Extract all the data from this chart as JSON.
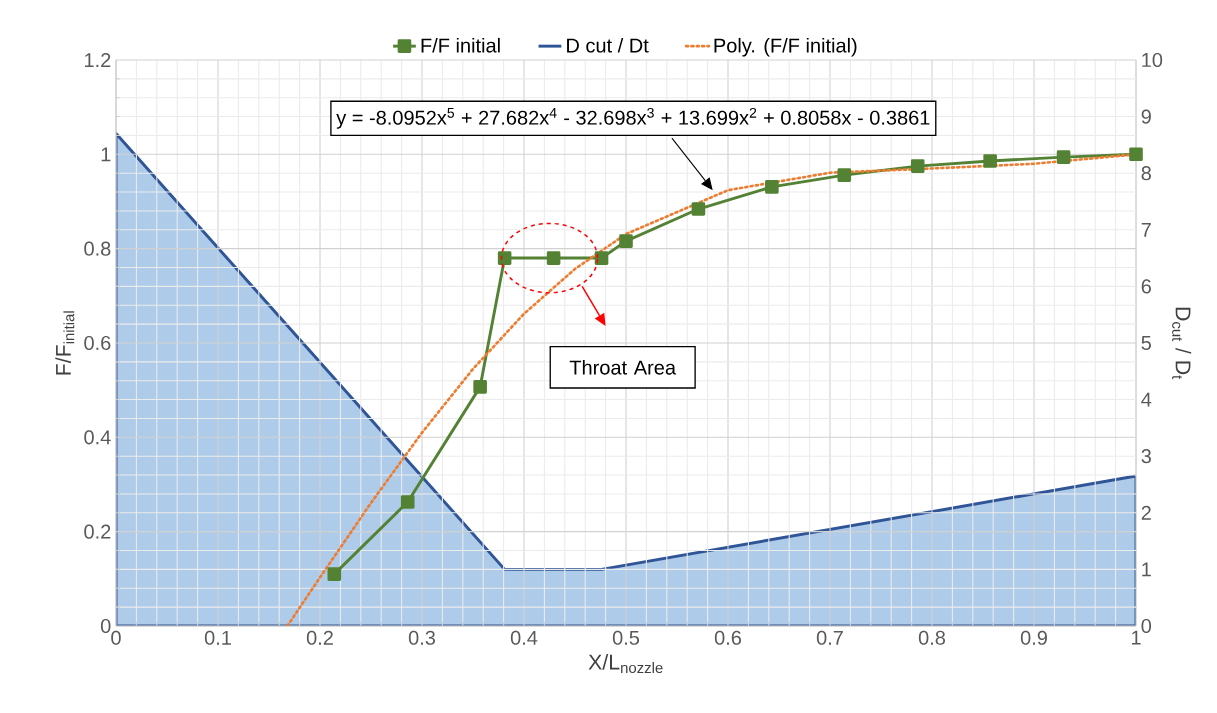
{
  "chart_data": {
    "type": "line",
    "xlabel": "X/L$_{nozzle}$",
    "ylabel": "F/F$_{initial}$",
    "y2label": "D$_{cut}$ / D$_{t}$",
    "xlim": [
      0,
      1
    ],
    "xticks": [
      0,
      0.1,
      0.2,
      0.3,
      0.4,
      0.5,
      0.6,
      0.7,
      0.8,
      0.9,
      1
    ],
    "ylim": [
      0,
      1.2
    ],
    "yticks": [
      0,
      0.2,
      0.4,
      0.6,
      0.8,
      1,
      1.2
    ],
    "y2lim": [
      0,
      10
    ],
    "y2ticks": [
      0,
      1,
      2,
      3,
      4,
      5,
      6,
      7,
      8,
      9,
      10
    ],
    "grid": true,
    "legend": "top",
    "series": [
      {
        "name": "F/F initial",
        "color": "#548235",
        "marker": "square",
        "x": [
          0.214,
          0.286,
          0.357,
          0.381,
          0.429,
          0.476,
          0.5,
          0.571,
          0.643,
          0.714,
          0.786,
          0.857,
          0.929,
          1
        ],
        "values": [
          0.11,
          0.263,
          0.507,
          0.78,
          0.78,
          0.78,
          0.816,
          0.884,
          0.931,
          0.956,
          0.975,
          0.986,
          0.994,
          1.0
        ]
      },
      {
        "name": "D cut / Dt",
        "type": "area",
        "axis": "y2",
        "color": "#aecbe9",
        "marker": "none",
        "x": [
          0,
          0.381,
          0.476,
          1
        ],
        "values": [
          8.7,
          1.0,
          1.0,
          2.65
        ]
      },
      {
        "name": "Poly. (F/F initial)",
        "color": "#ed7d31",
        "marker": "none",
        "line_style": "dotted",
        "x": [
          0.168,
          0.2,
          0.25,
          0.3,
          0.35,
          0.4,
          0.45,
          0.5,
          0.6,
          0.7,
          0.8,
          0.9,
          1
        ],
        "values": [
          0,
          0.103,
          0.261,
          0.41,
          0.545,
          0.662,
          0.757,
          0.831,
          0.924,
          0.961,
          0.97,
          0.98,
          1.0
        ]
      }
    ],
    "annotations": [
      "y = -8.0952x$^{5}$ + 27.682x$^{4}$ - 32.698x$^{3}$ + 13.699x$^{2}$ + 0.8058x - 0.3861",
      "Throat Area"
    ]
  }
}
